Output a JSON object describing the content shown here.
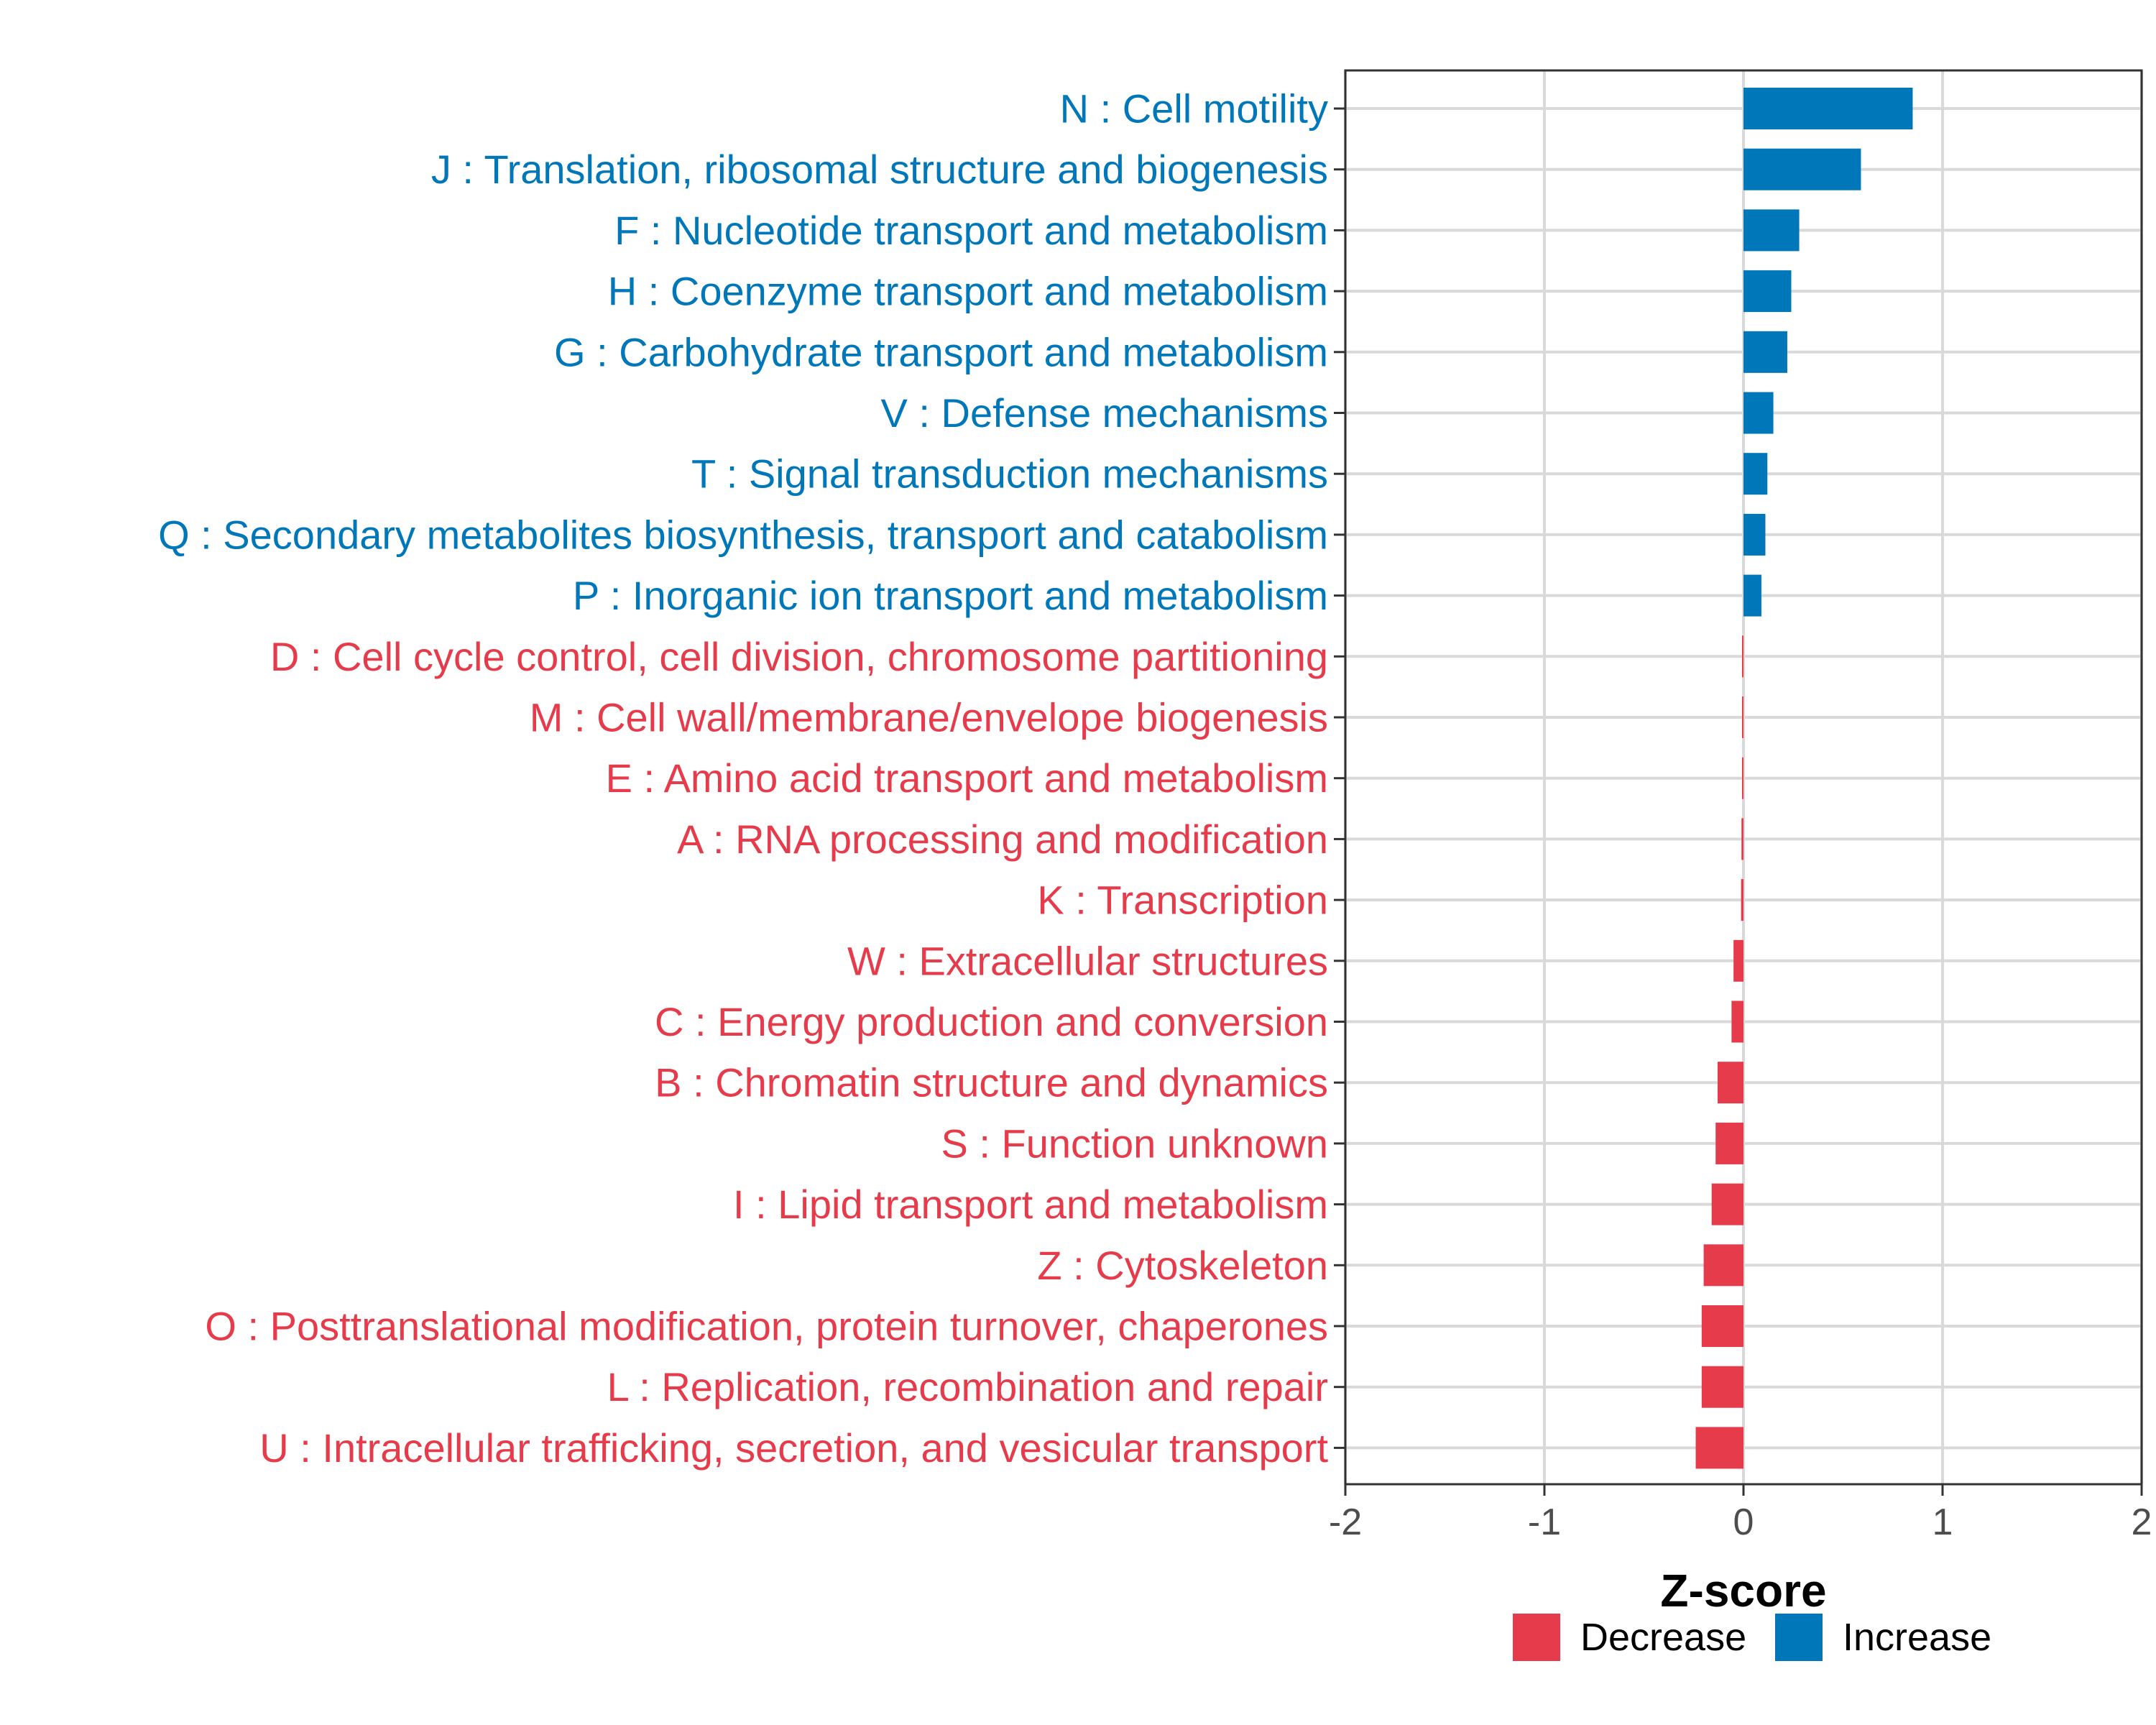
{
  "chart_data": {
    "type": "bar",
    "orientation": "horizontal",
    "xlabel": "Z-score",
    "xlim": [
      -2,
      2
    ],
    "xticks": [
      "-2",
      "-1",
      "0",
      "1",
      "2"
    ],
    "colors": {
      "Decrease": "#e63b4b",
      "Increase": "#0077b8"
    },
    "legend": {
      "position": "bottom",
      "entries": [
        {
          "name": "Decrease",
          "color": "#e63b4b"
        },
        {
          "name": "Increase",
          "color": "#0077b8"
        }
      ]
    },
    "categories": [
      {
        "label": "N : Cell motility",
        "value": 0.85,
        "direction": "Increase"
      },
      {
        "label": "J : Translation, ribosomal structure and biogenesis",
        "value": 0.59,
        "direction": "Increase"
      },
      {
        "label": "F : Nucleotide transport and metabolism",
        "value": 0.28,
        "direction": "Increase"
      },
      {
        "label": "H : Coenzyme transport and metabolism",
        "value": 0.24,
        "direction": "Increase"
      },
      {
        "label": "G : Carbohydrate transport and metabolism",
        "value": 0.22,
        "direction": "Increase"
      },
      {
        "label": "V : Defense mechanisms",
        "value": 0.15,
        "direction": "Increase"
      },
      {
        "label": "T : Signal transduction mechanisms",
        "value": 0.12,
        "direction": "Increase"
      },
      {
        "label": "Q : Secondary metabolites biosynthesis, transport and catabolism",
        "value": 0.11,
        "direction": "Increase"
      },
      {
        "label": "P : Inorganic ion transport and metabolism",
        "value": 0.09,
        "direction": "Increase"
      },
      {
        "label": "D : Cell cycle control, cell division, chromosome partitioning",
        "value": -0.002,
        "direction": "Decrease"
      },
      {
        "label": "M : Cell wall/membrane/envelope biogenesis",
        "value": -0.004,
        "direction": "Decrease"
      },
      {
        "label": "E : Amino acid transport and metabolism",
        "value": -0.006,
        "direction": "Decrease"
      },
      {
        "label": "A : RNA processing and modification",
        "value": -0.01,
        "direction": "Decrease"
      },
      {
        "label": "K : Transcription",
        "value": -0.012,
        "direction": "Decrease"
      },
      {
        "label": "W : Extracellular structures",
        "value": -0.05,
        "direction": "Decrease"
      },
      {
        "label": "C : Energy production and conversion",
        "value": -0.06,
        "direction": "Decrease"
      },
      {
        "label": "B : Chromatin structure and dynamics",
        "value": -0.13,
        "direction": "Decrease"
      },
      {
        "label": "S : Function unknown",
        "value": -0.14,
        "direction": "Decrease"
      },
      {
        "label": "I : Lipid transport and metabolism",
        "value": -0.16,
        "direction": "Decrease"
      },
      {
        "label": "Z : Cytoskeleton",
        "value": -0.2,
        "direction": "Decrease"
      },
      {
        "label": "O : Posttranslational modification, protein turnover, chaperones",
        "value": -0.21,
        "direction": "Decrease"
      },
      {
        "label": "L : Replication, recombination and repair",
        "value": -0.21,
        "direction": "Decrease"
      },
      {
        "label": "U : Intracellular trafficking, secretion, and vesicular transport",
        "value": -0.24,
        "direction": "Decrease"
      }
    ]
  }
}
